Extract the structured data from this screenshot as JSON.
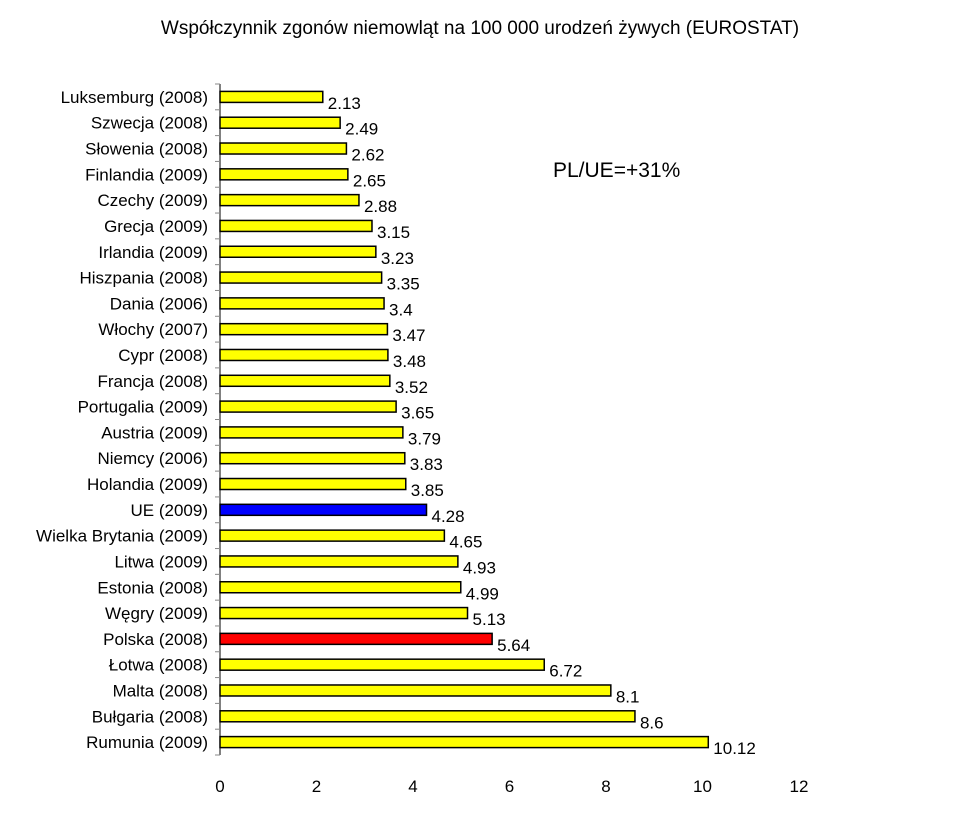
{
  "chart_data": {
    "type": "bar",
    "orientation": "horizontal",
    "title": "Współczynnik zgonów niemowląt na 100 000 urodzeń żywych (EUROSTAT)",
    "xlabel": "",
    "ylabel": "",
    "xlim": [
      0,
      12
    ],
    "x_ticks": [
      "0",
      "2",
      "4",
      "6",
      "8",
      "10",
      "12"
    ],
    "grid": false,
    "legend": "none",
    "annotation": "PL/UE=+31%",
    "colors": {
      "default": "#FFFF00",
      "highlight_eu": "#0000FF",
      "highlight_pl": "#FF0000",
      "edge": "#000000"
    },
    "categories": [
      "Luksemburg (2008)",
      "Szwecja (2008)",
      "Słowenia (2008)",
      "Finlandia (2009)",
      "Czechy (2009)",
      "Grecja (2009)",
      "Irlandia (2009)",
      "Hiszpania (2008)",
      "Dania (2006)",
      "Włochy (2007)",
      "Cypr (2008)",
      "Francja (2008)",
      "Portugalia (2009)",
      "Austria (2009)",
      "Niemcy (2006)",
      "Holandia (2009)",
      "UE (2009)",
      "Wielka Brytania (2009)",
      "Litwa (2009)",
      "Estonia (2008)",
      "Węgry (2009)",
      "Polska (2008)",
      "Łotwa (2008)",
      "Malta (2008)",
      "Bułgaria (2008)",
      "Rumunia (2009)"
    ],
    "values": [
      2.13,
      2.49,
      2.62,
      2.65,
      2.88,
      3.15,
      3.23,
      3.35,
      3.4,
      3.47,
      3.48,
      3.52,
      3.65,
      3.79,
      3.83,
      3.85,
      4.28,
      4.65,
      4.93,
      4.99,
      5.13,
      5.64,
      6.72,
      8.1,
      8.6,
      10.12
    ],
    "value_labels": [
      "2.13",
      "2.49",
      "2.62",
      "2.65",
      "2.88",
      "3.15",
      "3.23",
      "3.35",
      "3.4",
      "3.47",
      "3.48",
      "3.52",
      "3.65",
      "3.79",
      "3.83",
      "3.85",
      "4.28",
      "4.65",
      "4.93",
      "4.99",
      "5.13",
      "5.64",
      "6.72",
      "8.1",
      "8.6",
      "10.12"
    ],
    "bar_colors": [
      "#FFFF00",
      "#FFFF00",
      "#FFFF00",
      "#FFFF00",
      "#FFFF00",
      "#FFFF00",
      "#FFFF00",
      "#FFFF00",
      "#FFFF00",
      "#FFFF00",
      "#FFFF00",
      "#FFFF00",
      "#FFFF00",
      "#FFFF00",
      "#FFFF00",
      "#FFFF00",
      "#0000FF",
      "#FFFF00",
      "#FFFF00",
      "#FFFF00",
      "#FFFF00",
      "#FF0000",
      "#FFFF00",
      "#FFFF00",
      "#FFFF00",
      "#FFFF00"
    ]
  }
}
